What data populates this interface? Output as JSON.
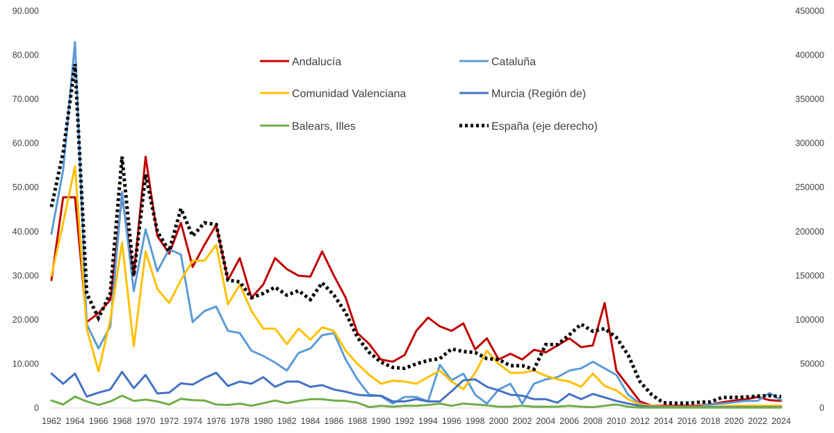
{
  "chart_data": {
    "type": "line",
    "x": [
      1962,
      1963,
      1964,
      1965,
      1966,
      1967,
      1968,
      1969,
      1970,
      1971,
      1972,
      1973,
      1974,
      1975,
      1976,
      1977,
      1978,
      1979,
      1980,
      1981,
      1982,
      1983,
      1984,
      1985,
      1986,
      1987,
      1988,
      1989,
      1990,
      1991,
      1992,
      1993,
      1994,
      1995,
      1996,
      1997,
      1998,
      1999,
      2000,
      2001,
      2002,
      2003,
      2004,
      2005,
      2006,
      2007,
      2008,
      2009,
      2010,
      2011,
      2012,
      2013,
      2014,
      2015,
      2016,
      2017,
      2018,
      2019,
      2020,
      2021,
      2022,
      2023,
      2024
    ],
    "x_ticks": [
      1962,
      1964,
      1966,
      1968,
      1970,
      1972,
      1974,
      1976,
      1978,
      1980,
      1982,
      1984,
      1986,
      1988,
      1990,
      1992,
      1994,
      1996,
      1998,
      2000,
      2002,
      2004,
      2006,
      2008,
      2010,
      2012,
      2014,
      2016,
      2018,
      2020,
      2022,
      2024
    ],
    "x_tick_labels": [
      "1962",
      "1964",
      "1966",
      "1968",
      "1970",
      "1972",
      "1974",
      "1976",
      "1978",
      "1980",
      "1982",
      "1984",
      "1986",
      "1988",
      "1990",
      "1992",
      "1994",
      "1996",
      "1998",
      "2000",
      "2002",
      "2004",
      "2006",
      "2008",
      "2010",
      "2012",
      "2014",
      "2016",
      "2018",
      "2020",
      "2022",
      "2024"
    ],
    "ylim_left": [
      0,
      90000
    ],
    "y_ticks_left": [
      0,
      10000,
      20000,
      30000,
      40000,
      50000,
      60000,
      70000,
      80000,
      90000
    ],
    "y_tick_labels_left": [
      "0",
      "10.000",
      "20.000",
      "30.000",
      "40.000",
      "50.000",
      "60.000",
      "70.000",
      "80.000",
      "90.000"
    ],
    "ylim_right": [
      0,
      450000
    ],
    "y_ticks_right": [
      0,
      50000,
      100000,
      150000,
      200000,
      250000,
      300000,
      350000,
      400000,
      450000
    ],
    "y_tick_labels_right": [
      "0",
      "50000",
      "100000",
      "150000",
      "200000",
      "250000",
      "300000",
      "350000",
      "400000",
      "450000"
    ],
    "legend_position": "top-center",
    "series": [
      {
        "name": "Andalucía",
        "color": "#c00000",
        "axis": "left",
        "style": "solid",
        "values": [
          29000,
          47800,
          47800,
          19500,
          21500,
          24500,
          48000,
          30000,
          57000,
          39000,
          35000,
          42000,
          32000,
          37000,
          41500,
          29000,
          34000,
          25000,
          28000,
          34000,
          31500,
          30000,
          29800,
          35500,
          30000,
          25000,
          17000,
          14500,
          11000,
          10500,
          12000,
          17500,
          20500,
          18500,
          17500,
          19200,
          13300,
          15800,
          11000,
          12300,
          11000,
          13200,
          12600,
          14200,
          15800,
          13800,
          14200,
          23800,
          8500,
          5000,
          1500,
          500,
          500,
          500,
          500,
          500,
          800,
          1300,
          1700,
          2000,
          2500,
          1800,
          1600
        ]
      },
      {
        "name": "Cataluña",
        "color": "#5b9bd5",
        "axis": "left",
        "style": "solid",
        "values": [
          39500,
          54000,
          83000,
          19000,
          13500,
          18500,
          49000,
          26500,
          40500,
          31000,
          36000,
          34800,
          19500,
          22000,
          23000,
          17500,
          17000,
          13000,
          11800,
          10300,
          8500,
          12500,
          13500,
          16500,
          17000,
          11000,
          6500,
          3000,
          2700,
          1000,
          2500,
          2500,
          1500,
          9800,
          6300,
          7800,
          3000,
          1000,
          4200,
          5500,
          1000,
          5500,
          6500,
          7000,
          8500,
          9000,
          10500,
          9000,
          7500,
          3000,
          1000,
          300,
          300,
          300,
          300,
          300,
          800,
          1000,
          1300,
          1600,
          1600,
          3400,
          1800
        ]
      },
      {
        "name": "Comunidad Valenciana",
        "color": "#ffc000",
        "axis": "left",
        "style": "solid",
        "values": [
          30000,
          42000,
          54800,
          18000,
          8300,
          20000,
          37500,
          14000,
          35500,
          27000,
          23800,
          29000,
          33400,
          33400,
          37000,
          23500,
          28000,
          22000,
          18000,
          18000,
          14500,
          18000,
          15500,
          18300,
          17500,
          13000,
          10000,
          7500,
          5500,
          6200,
          6000,
          5500,
          7000,
          8500,
          6000,
          4300,
          8000,
          13000,
          10000,
          8000,
          8000,
          8500,
          7300,
          6500,
          6000,
          4800,
          7800,
          5000,
          4000,
          2000,
          800,
          500,
          300,
          300,
          300,
          300,
          300,
          400,
          500,
          500,
          500,
          500,
          500
        ]
      },
      {
        "name": "Murcia (Región de)",
        "color": "#4472c4",
        "axis": "left",
        "style": "solid",
        "values": [
          7800,
          5500,
          7800,
          2600,
          3500,
          4200,
          8200,
          4500,
          7500,
          3300,
          3500,
          5600,
          5300,
          6800,
          8000,
          5000,
          6000,
          5500,
          7000,
          4800,
          6000,
          6000,
          4800,
          5200,
          4200,
          3700,
          3000,
          2800,
          2800,
          1500,
          1500,
          2000,
          1500,
          1500,
          3800,
          6300,
          6500,
          4800,
          4000,
          3000,
          2800,
          2000,
          2000,
          1200,
          3200,
          2000,
          3200,
          2400,
          1600,
          1000,
          500,
          300,
          200,
          200,
          200,
          200,
          200,
          200,
          200,
          200,
          200,
          200,
          200
        ]
      },
      {
        "name": "Balears, Illes",
        "color": "#70ad47",
        "axis": "left",
        "style": "solid",
        "values": [
          1700,
          800,
          2600,
          1500,
          700,
          1500,
          2800,
          1600,
          1900,
          1500,
          800,
          2100,
          1800,
          1700,
          800,
          700,
          1000,
          500,
          1100,
          1700,
          1100,
          1600,
          2000,
          2000,
          1700,
          1600,
          1200,
          200,
          500,
          300,
          500,
          500,
          700,
          1000,
          500,
          1000,
          800,
          600,
          300,
          300,
          500,
          300,
          300,
          300,
          500,
          300,
          200,
          500,
          800,
          300,
          100,
          100,
          100,
          100,
          100,
          100,
          100,
          100,
          100,
          100,
          100,
          100,
          100
        ]
      },
      {
        "name": "España (eje derecho)",
        "color": "#000000",
        "axis": "right",
        "style": "dotted",
        "values": [
          228000,
          290000,
          390000,
          130000,
          102000,
          130000,
          285000,
          150000,
          265000,
          200000,
          178000,
          226000,
          195000,
          210000,
          208000,
          145000,
          143000,
          125000,
          130000,
          137000,
          128000,
          133000,
          123000,
          142000,
          128000,
          108000,
          80000,
          63000,
          52000,
          46000,
          45000,
          50000,
          54000,
          56000,
          67000,
          64000,
          63000,
          56000,
          55000,
          48000,
          48000,
          44000,
          72000,
          72000,
          83000,
          95000,
          87000,
          90000,
          80000,
          60000,
          30000,
          15000,
          6000,
          5500,
          5500,
          6500,
          7000,
          12000,
          12000,
          12500,
          13500,
          14000,
          13000
        ]
      }
    ]
  }
}
